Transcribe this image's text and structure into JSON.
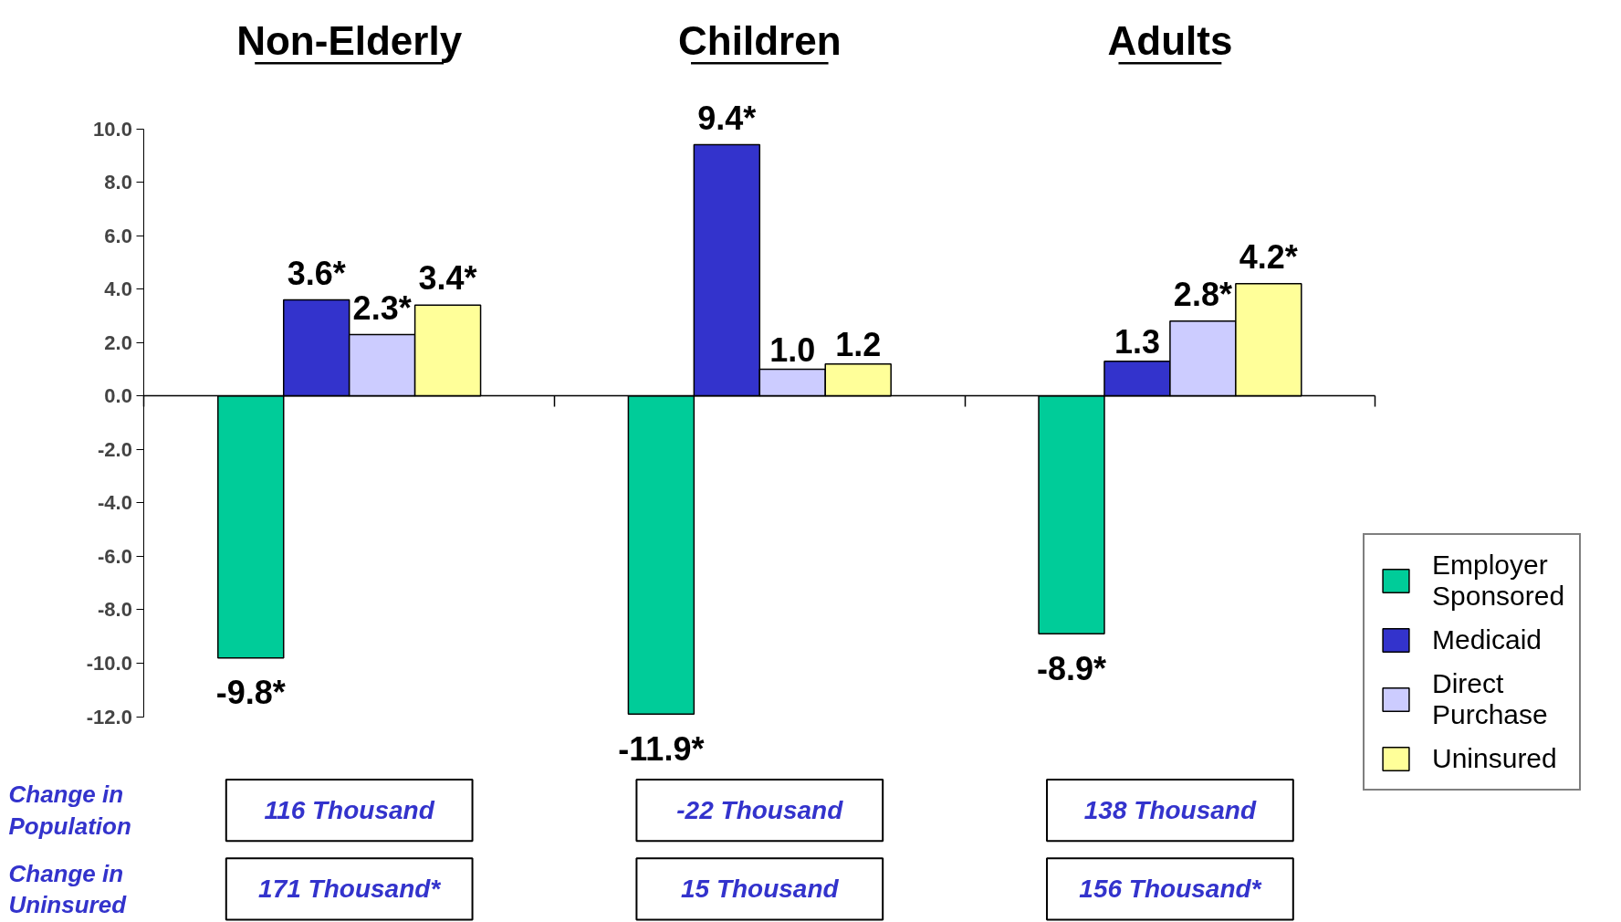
{
  "chart_data": {
    "type": "bar",
    "categories": [
      "Non-Elderly",
      "Children",
      "Adults"
    ],
    "series": [
      {
        "name": "Employer Sponsored",
        "color": "#00cc99",
        "values": [
          -9.8,
          -11.9,
          -8.9
        ],
        "value_labels": [
          "-9.8*",
          "-11.9*",
          "-8.9*"
        ]
      },
      {
        "name": "Medicaid",
        "color": "#3333cc",
        "values": [
          3.6,
          9.4,
          1.3
        ],
        "value_labels": [
          "3.6*",
          "9.4*",
          "1.3"
        ]
      },
      {
        "name": "Direct Purchase",
        "color": "#ccccff",
        "values": [
          2.3,
          1.0,
          2.8
        ],
        "value_labels": [
          "2.3*",
          "1.0",
          "2.8*"
        ]
      },
      {
        "name": "Uninsured",
        "color": "#ffff99",
        "values": [
          3.4,
          1.2,
          4.2
        ],
        "value_labels": [
          "3.4*",
          "1.2",
          "4.2*"
        ]
      }
    ],
    "ylim": [
      -12,
      10
    ],
    "yticks": [
      {
        "value": -12,
        "label": "-12.0"
      },
      {
        "value": -10,
        "label": "-10.0"
      },
      {
        "value": -8,
        "label": "-8.0"
      },
      {
        "value": -6,
        "label": "-6.0"
      },
      {
        "value": -4,
        "label": "-4.0"
      },
      {
        "value": -2,
        "label": "-2.0"
      },
      {
        "value": 0,
        "label": "0.0"
      },
      {
        "value": 2,
        "label": "2.0"
      },
      {
        "value": 4,
        "label": "4.0"
      },
      {
        "value": 6,
        "label": "6.0"
      },
      {
        "value": 8,
        "label": "8.0"
      },
      {
        "value": 10,
        "label": "10.0"
      }
    ],
    "legend": "right",
    "annotations": [
      "Change in Population",
      "116 Thousand",
      "-22 Thousand",
      "138 Thousand",
      "Change in Uninsured",
      "171 Thousand*",
      "15 Thousand",
      "156 Thousand*"
    ]
  }
}
